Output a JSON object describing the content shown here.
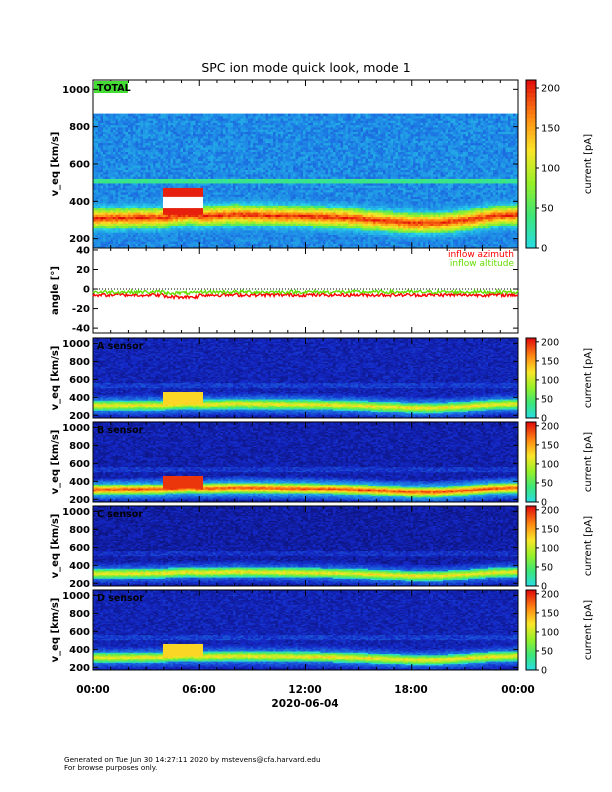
{
  "chart_data": {
    "type": "heatmap",
    "title": "SPC ion mode quick look, mode 1",
    "xlabel": "2020-06-04",
    "x_tick_labels": [
      "00:00",
      "06:00",
      "12:00",
      "18:00",
      "00:00"
    ],
    "x_range_hours": [
      0,
      24
    ],
    "panels": [
      {
        "id": "total",
        "label": "TOTAL",
        "ylabel": "v_eq [km/s]",
        "ylim": [
          150,
          1050
        ],
        "y_ticks": [
          200,
          400,
          600,
          800,
          1000
        ],
        "colorbar": {
          "label": "current [pA]",
          "range": [
            0,
            210
          ],
          "ticks": [
            0,
            50,
            100,
            150,
            200
          ]
        },
        "data_top_kms": 870,
        "noise_level": 45,
        "band_level": 105,
        "peak_level": 195
      },
      {
        "id": "angle",
        "type": "line",
        "ylabel": "angle [°]",
        "ylim": [
          -45,
          42
        ],
        "y_ticks": [
          -40,
          -20,
          0,
          20,
          40
        ],
        "series": [
          {
            "name": "inflow azimuth",
            "color": "#ff0000",
            "mean_deg": -6
          },
          {
            "name": "inflow altitude",
            "color": "#66dd00",
            "mean_deg": -3
          }
        ]
      },
      {
        "id": "a",
        "label": "A sensor",
        "ylabel": "v_eq [km/s]",
        "ylim": [
          170,
          1060
        ],
        "y_ticks": [
          200,
          400,
          600,
          800,
          1000
        ],
        "colorbar": {
          "label": "current [pA]",
          "range": [
            0,
            210
          ],
          "ticks": [
            0,
            50,
            100,
            150,
            200
          ]
        },
        "data_top_kms": 1060,
        "noise_level": 12,
        "band_level": 70,
        "peak_level": 150
      },
      {
        "id": "b",
        "label": "B sensor",
        "ylabel": "v_eq [km/s]",
        "ylim": [
          170,
          1060
        ],
        "y_ticks": [
          200,
          400,
          600,
          800,
          1000
        ],
        "colorbar": {
          "label": "current [pA]",
          "range": [
            0,
            210
          ],
          "ticks": [
            0,
            50,
            100,
            150,
            200
          ]
        },
        "data_top_kms": 1060,
        "noise_level": 10,
        "band_level": 90,
        "peak_level": 190
      },
      {
        "id": "c",
        "label": "C sensor",
        "ylabel": "v_eq [km/s]",
        "ylim": [
          170,
          1060
        ],
        "y_ticks": [
          200,
          400,
          600,
          800,
          1000
        ],
        "colorbar": {
          "label": "current [pA]",
          "range": [
            0,
            210
          ],
          "ticks": [
            0,
            50,
            100,
            150,
            200
          ]
        },
        "data_top_kms": 1060,
        "noise_level": 8,
        "band_level": 60,
        "peak_level": 150
      },
      {
        "id": "d",
        "label": "D sensor",
        "ylabel": "v_eq [km/s]",
        "ylim": [
          170,
          1060
        ],
        "y_ticks": [
          200,
          400,
          600,
          800,
          1000
        ],
        "colorbar": {
          "label": "current [pA]",
          "range": [
            0,
            210
          ],
          "ticks": [
            0,
            50,
            100,
            150,
            200
          ]
        },
        "data_top_kms": 1060,
        "noise_level": 12,
        "band_level": 65,
        "peak_level": 150
      }
    ],
    "solar_wind_band": {
      "description_points_hours": [
        0,
        4,
        5.5,
        6,
        8,
        10,
        12,
        14,
        16,
        18,
        19.5,
        21,
        22.5,
        24
      ],
      "center_kms": [
        310,
        315,
        330,
        320,
        330,
        325,
        320,
        315,
        300,
        285,
        285,
        300,
        320,
        330
      ]
    }
  },
  "footer": {
    "line1": "Generated on Tue Jun 30 14:27:11 2020 by mstevens@cfa.harvard.edu",
    "line2": "For browse purposes only."
  }
}
